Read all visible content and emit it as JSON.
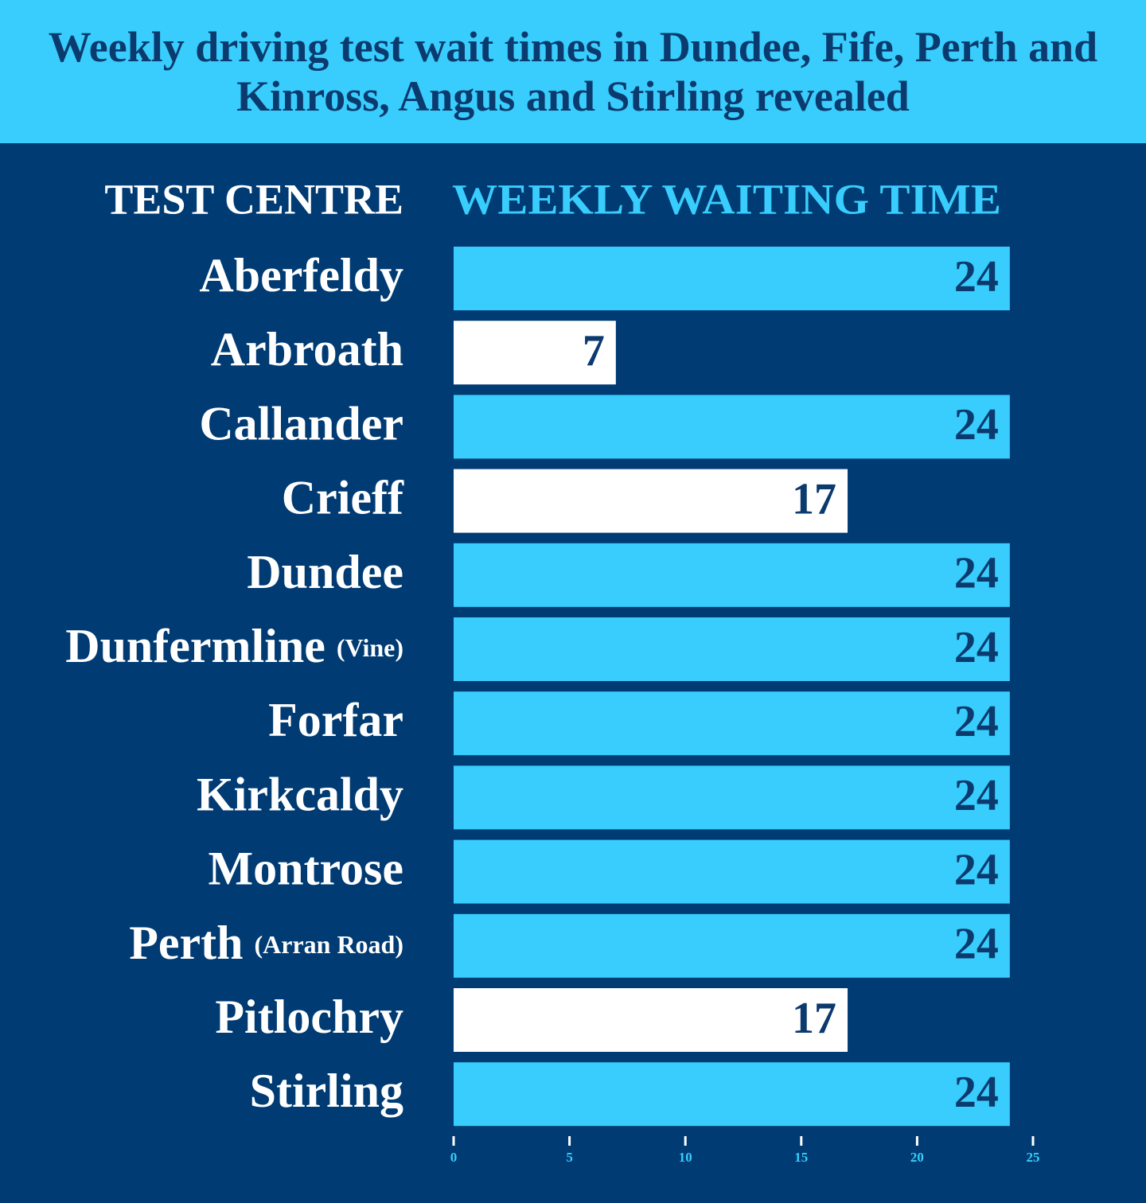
{
  "chart_data": {
    "type": "bar",
    "orientation": "horizontal",
    "title": "Weekly driving test wait times in Dundee, Fife, Perth and Kinross, Angus and Stirling revealed",
    "category_axis_label": "TEST CENTRE",
    "value_axis_label": "WEEKLY WAITING TIME",
    "categories": [
      "Aberfeldy",
      "Arbroath",
      "Callander",
      "Crieff",
      "Dundee",
      "Dunfermline",
      "Forfar",
      "Kirkcaldy",
      "Montrose",
      "Perth",
      "Pitlochry",
      "Stirling"
    ],
    "category_notes": [
      null,
      null,
      null,
      null,
      null,
      "(Vine)",
      null,
      null,
      null,
      "(Arran Road)",
      null,
      null
    ],
    "values": [
      24,
      7,
      24,
      17,
      24,
      24,
      24,
      24,
      24,
      24,
      17,
      24
    ],
    "colors": [
      "#38cdfc",
      "#ffffff",
      "#38cdfc",
      "#ffffff",
      "#38cdfc",
      "#38cdfc",
      "#38cdfc",
      "#38cdfc",
      "#38cdfc",
      "#38cdfc",
      "#ffffff",
      "#38cdfc"
    ],
    "xlim": [
      0,
      25
    ],
    "xticks": [
      0,
      5,
      10,
      15,
      20,
      25
    ]
  }
}
